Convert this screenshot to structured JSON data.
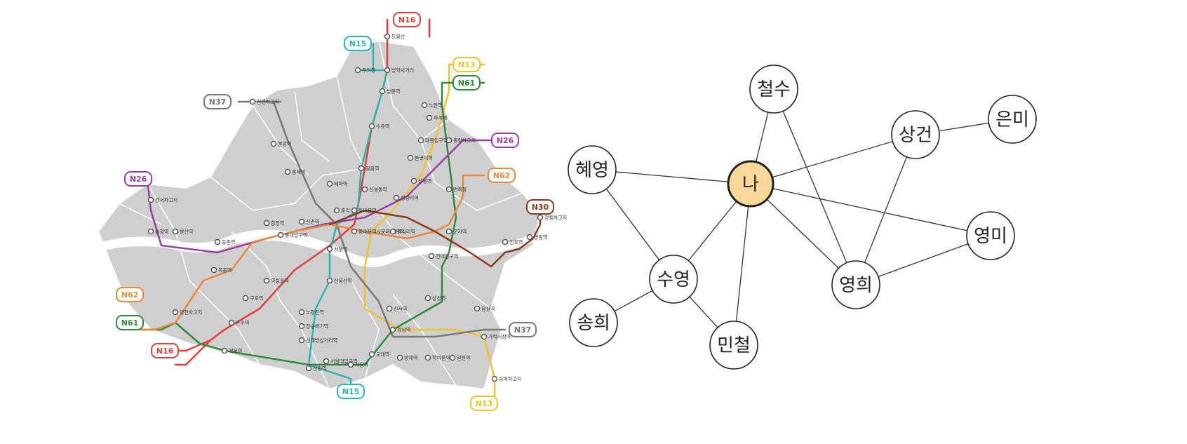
{
  "colors": {
    "map_fill": "#cfcfcf",
    "map_fill_dark": "#bdbdbd",
    "river": "#ffffff",
    "route_N13": "#f2c12e",
    "route_N15": "#2bb5b0",
    "route_N16": "#e0403a",
    "route_N26": "#9b3fa0",
    "route_N30": "#8b3a1e",
    "route_N37": "#777777",
    "route_N61": "#2e8a3c",
    "route_N62": "#e8893a",
    "center_node_fill": "#fbd79a",
    "node_fill": "#ffffff",
    "edge": "#333333"
  },
  "bus_map": {
    "badges": [
      {
        "id": "N16",
        "label": "N16",
        "color_key": "route_N16"
      },
      {
        "id": "N15",
        "label": "N15",
        "color_key": "route_N15"
      },
      {
        "id": "N13",
        "label": "N13",
        "color_key": "route_N13"
      },
      {
        "id": "N61",
        "label": "N61",
        "color_key": "route_N61"
      },
      {
        "id": "N37",
        "label": "N37",
        "color_key": "route_N37"
      },
      {
        "id": "N26",
        "label": "N26",
        "color_key": "route_N26"
      },
      {
        "id": "N62",
        "label": "N62",
        "color_key": "route_N62"
      },
      {
        "id": "N30",
        "label": "N30",
        "color_key": "route_N30"
      },
      {
        "id": "N26b",
        "label": "N26",
        "color_key": "route_N26"
      },
      {
        "id": "N62b",
        "label": "N62",
        "color_key": "route_N62"
      },
      {
        "id": "N61b",
        "label": "N61",
        "color_key": "route_N61"
      },
      {
        "id": "N16b",
        "label": "N16",
        "color_key": "route_N16"
      },
      {
        "id": "N15b",
        "label": "N15",
        "color_key": "route_N15"
      },
      {
        "id": "N37b",
        "label": "N37",
        "color_key": "route_N37"
      },
      {
        "id": "N13b",
        "label": "N13",
        "color_key": "route_N13"
      }
    ],
    "stations": [
      {
        "id": "s1",
        "label": "도봉산"
      },
      {
        "id": "s2",
        "label": "방학사거리"
      },
      {
        "id": "s3",
        "label": "우이동"
      },
      {
        "id": "s4",
        "label": "쌍문역"
      },
      {
        "id": "s5",
        "label": "노원역"
      },
      {
        "id": "s6",
        "label": "하계역"
      },
      {
        "id": "s7",
        "label": "태릉입구역"
      },
      {
        "id": "s8",
        "label": "중랑차고지"
      },
      {
        "id": "s9",
        "label": "수유역"
      },
      {
        "id": "s10",
        "label": "진관차고지"
      },
      {
        "id": "s11",
        "label": "불광역"
      },
      {
        "id": "s12",
        "label": "홍제역"
      },
      {
        "id": "s13",
        "label": "돌곶이역"
      },
      {
        "id": "s14",
        "label": "길음역"
      },
      {
        "id": "s15",
        "label": "혜화역"
      },
      {
        "id": "s16",
        "label": "신설동역"
      },
      {
        "id": "s17",
        "label": "상봉역"
      },
      {
        "id": "s18",
        "label": "면목동"
      },
      {
        "id": "s19",
        "label": "청량리역"
      },
      {
        "id": "s20",
        "label": "강서차고지"
      },
      {
        "id": "s21",
        "label": "합정역"
      },
      {
        "id": "s22",
        "label": "신촌역"
      },
      {
        "id": "s23",
        "label": "종각"
      },
      {
        "id": "s24",
        "label": "동대문역"
      },
      {
        "id": "s25",
        "label": "강동차고지"
      },
      {
        "id": "s26",
        "label": "송정역"
      },
      {
        "id": "s27",
        "label": "발산역"
      },
      {
        "id": "s28",
        "label": "등촌역"
      },
      {
        "id": "s29",
        "label": "홍대입구역"
      },
      {
        "id": "s30",
        "label": "서울역"
      },
      {
        "id": "s31",
        "label": "동대문역사문화공원역"
      },
      {
        "id": "s32",
        "label": "왕십리역"
      },
      {
        "id": "s33",
        "label": "군자역"
      },
      {
        "id": "s34",
        "label": "천호역"
      },
      {
        "id": "s35",
        "label": "명일역"
      },
      {
        "id": "s36",
        "label": "목동역"
      },
      {
        "id": "s37",
        "label": "영등포역"
      },
      {
        "id": "s38",
        "label": "건대입구역"
      },
      {
        "id": "s39",
        "label": "구로역"
      },
      {
        "id": "s40",
        "label": "신용산역"
      },
      {
        "id": "s41",
        "label": "양천차고지"
      },
      {
        "id": "s42",
        "label": "노량진역"
      },
      {
        "id": "s43",
        "label": "신사역"
      },
      {
        "id": "s44",
        "label": "삼성역"
      },
      {
        "id": "s45",
        "label": "잠실역"
      },
      {
        "id": "s46",
        "label": "온수역"
      },
      {
        "id": "s47",
        "label": "장승배기역"
      },
      {
        "id": "s48",
        "label": "신대방삼거리역"
      },
      {
        "id": "s49",
        "label": "강남역"
      },
      {
        "id": "s50",
        "label": "가락시장역"
      },
      {
        "id": "s51",
        "label": "서울대입구역"
      },
      {
        "id": "s52",
        "label": "교대역"
      },
      {
        "id": "s53",
        "label": "개봉역"
      },
      {
        "id": "s54",
        "label": "사당역"
      },
      {
        "id": "s55",
        "label": "양재역"
      },
      {
        "id": "s56",
        "label": "학여울역"
      },
      {
        "id": "s57",
        "label": "일원역"
      },
      {
        "id": "s58",
        "label": "신림역"
      },
      {
        "id": "s59",
        "label": "송파차고지"
      }
    ]
  },
  "network": {
    "nodes": [
      {
        "id": "me",
        "label": "나",
        "center": true
      },
      {
        "id": "cheolsu",
        "label": "철수"
      },
      {
        "id": "sanggeon",
        "label": "상건"
      },
      {
        "id": "eunmi",
        "label": "은미"
      },
      {
        "id": "hyeyeong",
        "label": "혜영"
      },
      {
        "id": "yeongmi",
        "label": "영미"
      },
      {
        "id": "suyeong",
        "label": "수영"
      },
      {
        "id": "yeonghui",
        "label": "영희"
      },
      {
        "id": "songhui",
        "label": "송희"
      },
      {
        "id": "mincheol",
        "label": "민철"
      }
    ],
    "edges": [
      [
        "me",
        "cheolsu"
      ],
      [
        "me",
        "hyeyeong"
      ],
      [
        "me",
        "sanggeon"
      ],
      [
        "me",
        "yeongmi"
      ],
      [
        "me",
        "yeonghui"
      ],
      [
        "me",
        "suyeong"
      ],
      [
        "me",
        "mincheol"
      ],
      [
        "cheolsu",
        "yeonghui"
      ],
      [
        "sanggeon",
        "eunmi"
      ],
      [
        "sanggeon",
        "yeonghui"
      ],
      [
        "yeongmi",
        "yeonghui"
      ],
      [
        "hyeyeong",
        "suyeong"
      ],
      [
        "suyeong",
        "songhui"
      ],
      [
        "suyeong",
        "mincheol"
      ]
    ]
  }
}
